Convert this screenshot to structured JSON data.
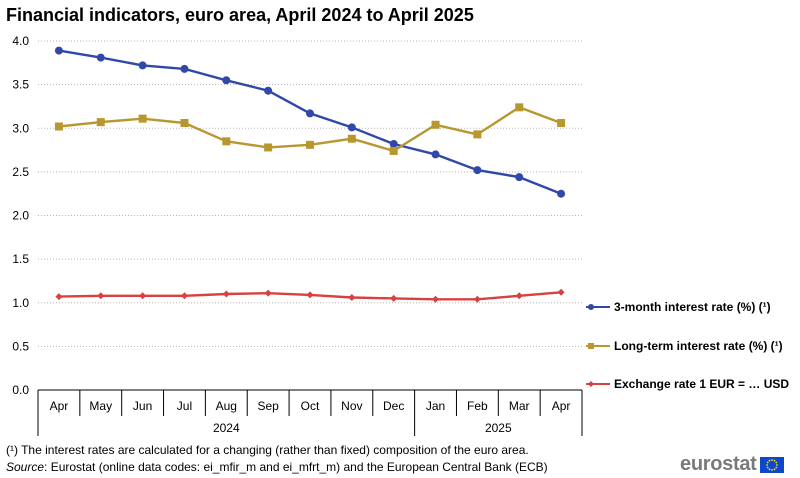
{
  "title": "Financial indicators, euro area, April 2024 to April 2025",
  "chart_data": {
    "type": "line",
    "categories": [
      "Apr",
      "May",
      "Jun",
      "Jul",
      "Aug",
      "Sep",
      "Oct",
      "Nov",
      "Dec",
      "Jan",
      "Feb",
      "Mar",
      "Apr"
    ],
    "year_groups": [
      {
        "label": "2024",
        "start": 0,
        "end": 8
      },
      {
        "label": "2025",
        "start": 9,
        "end": 12
      }
    ],
    "ylim": [
      0,
      4
    ],
    "yticks": [
      "0.0",
      "0.5",
      "1.0",
      "1.5",
      "2.0",
      "2.5",
      "3.0",
      "3.5",
      "4.0"
    ],
    "grid": true,
    "legend_position": "right",
    "series": [
      {
        "name": "3-month interest rate (%) (¹)",
        "color": "#3048a8",
        "marker": "circle",
        "values": [
          3.89,
          3.81,
          3.72,
          3.68,
          3.55,
          3.43,
          3.17,
          3.01,
          2.82,
          2.7,
          2.52,
          2.44,
          2.25
        ]
      },
      {
        "name": "Long-term interest rate (%) (¹)",
        "color": "#b8982e",
        "marker": "square",
        "values": [
          3.02,
          3.07,
          3.11,
          3.06,
          2.85,
          2.78,
          2.81,
          2.88,
          2.74,
          3.04,
          2.93,
          3.24,
          3.06
        ]
      },
      {
        "name": "Exchange rate 1 EUR = … USD",
        "color": "#d94040",
        "marker": "diamond",
        "values": [
          1.07,
          1.08,
          1.08,
          1.08,
          1.1,
          1.11,
          1.09,
          1.06,
          1.05,
          1.04,
          1.04,
          1.08,
          1.12
        ]
      }
    ]
  },
  "footnotes": {
    "note": "(¹) The interest rates are calculated for a changing (rather than fixed) composition of the euro area.",
    "source_label": "Source",
    "source_text": ": Eurostat (online data codes: ei_mfir_m and ei_mfrt_m) and the European Central Bank (ECB)"
  },
  "logo": {
    "text": "eurostat",
    "flag_color": "#0e47cb",
    "star_color": "#ffe000"
  }
}
